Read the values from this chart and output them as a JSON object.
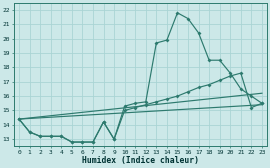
{
  "xlabel": "Humidex (Indice chaleur)",
  "background_color": "#cce8e8",
  "grid_color": "#aad4d4",
  "line_color": "#2d7a6e",
  "xlim": [
    -0.5,
    23.5
  ],
  "ylim": [
    12.5,
    22.5
  ],
  "xticks": [
    0,
    1,
    2,
    3,
    4,
    5,
    6,
    7,
    8,
    9,
    10,
    11,
    12,
    13,
    14,
    15,
    16,
    17,
    18,
    19,
    20,
    21,
    22,
    23
  ],
  "yticks": [
    13,
    14,
    15,
    16,
    17,
    18,
    19,
    20,
    21,
    22
  ],
  "curve_peak_x": [
    0,
    1,
    2,
    3,
    4,
    5,
    6,
    7,
    8,
    9,
    10,
    11,
    12,
    13,
    14,
    15,
    16,
    17,
    18,
    19,
    20,
    21,
    22,
    23
  ],
  "curve_peak_y": [
    14.4,
    13.5,
    13.2,
    13.2,
    13.2,
    12.8,
    12.8,
    12.8,
    14.2,
    13.0,
    15.3,
    15.5,
    15.6,
    19.7,
    19.9,
    21.8,
    21.4,
    20.4,
    18.5,
    18.5,
    17.6,
    16.5,
    16.0,
    15.5
  ],
  "curve_grad_x": [
    0,
    1,
    2,
    3,
    4,
    5,
    6,
    7,
    8,
    9,
    10,
    11,
    12,
    13,
    14,
    15,
    16,
    17,
    18,
    19,
    20,
    21,
    22,
    23
  ],
  "curve_grad_y": [
    14.4,
    13.5,
    13.2,
    13.2,
    13.2,
    12.8,
    12.8,
    12.8,
    14.2,
    13.0,
    15.0,
    15.2,
    15.4,
    15.6,
    15.8,
    16.0,
    16.3,
    16.6,
    16.8,
    17.1,
    17.4,
    17.6,
    15.2,
    15.5
  ],
  "line_lo": [
    [
      0,
      14.4
    ],
    [
      23,
      15.4
    ]
  ],
  "line_hi": [
    [
      0,
      14.4
    ],
    [
      23,
      16.2
    ]
  ]
}
